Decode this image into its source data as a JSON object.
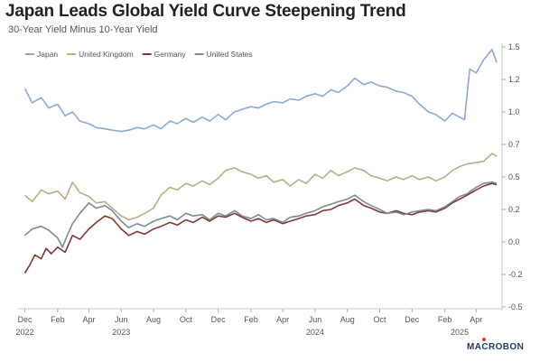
{
  "title": "Japan Leads Global Yield Curve Steepening Trend",
  "subtitle": "30-Year Yield Minus 10-Year Yield",
  "brand": "MACROBON",
  "chart_data": {
    "type": "line",
    "ylim": [
      -0.5,
      1.5
    ],
    "yticks": [
      "1.5",
      "1.2",
      "1.0",
      "0.7",
      "0.5",
      "0.2",
      "0.0",
      "-0.2",
      "-0.5"
    ],
    "ytick_values": [
      1.5,
      1.25,
      1.0,
      0.75,
      0.5,
      0.25,
      0.0,
      -0.25,
      -0.5
    ],
    "xlim": [
      "2022-11-25",
      "2025-05-20"
    ],
    "month_ticks": [
      {
        "label": "Dec",
        "date": "2022-12-01"
      },
      {
        "label": "Feb",
        "date": "2023-02-01"
      },
      {
        "label": "Apr",
        "date": "2023-04-01"
      },
      {
        "label": "Jun",
        "date": "2023-06-01"
      },
      {
        "label": "Aug",
        "date": "2023-08-01"
      },
      {
        "label": "Oct",
        "date": "2023-10-01"
      },
      {
        "label": "Dec",
        "date": "2023-12-01"
      },
      {
        "label": "Feb",
        "date": "2024-02-01"
      },
      {
        "label": "Apr",
        "date": "2024-04-01"
      },
      {
        "label": "Jun",
        "date": "2024-06-01"
      },
      {
        "label": "Aug",
        "date": "2024-08-01"
      },
      {
        "label": "Oct",
        "date": "2024-10-01"
      },
      {
        "label": "Dec",
        "date": "2024-12-01"
      },
      {
        "label": "Feb",
        "date": "2025-02-01"
      },
      {
        "label": "Apr",
        "date": "2025-04-01"
      }
    ],
    "year_ticks": [
      {
        "label": "2022",
        "date": "2022-12-01"
      },
      {
        "label": "2023",
        "date": "2023-06-01"
      },
      {
        "label": "2024",
        "date": "2024-06-01"
      },
      {
        "label": "2025",
        "date": "2025-03-01"
      }
    ],
    "legend_position": "top-left",
    "grid": false,
    "series": [
      {
        "name": "Japan",
        "color": "#8ea9cf",
        "points": [
          [
            "2022-12-01",
            1.18
          ],
          [
            "2022-12-15",
            1.07
          ],
          [
            "2023-01-01",
            1.11
          ],
          [
            "2023-01-15",
            1.03
          ],
          [
            "2023-02-01",
            1.06
          ],
          [
            "2023-02-15",
            0.97
          ],
          [
            "2023-03-01",
            1.0
          ],
          [
            "2023-03-15",
            0.93
          ],
          [
            "2023-04-01",
            0.91
          ],
          [
            "2023-04-15",
            0.88
          ],
          [
            "2023-05-01",
            0.87
          ],
          [
            "2023-05-15",
            0.86
          ],
          [
            "2023-06-01",
            0.85
          ],
          [
            "2023-06-15",
            0.86
          ],
          [
            "2023-07-01",
            0.88
          ],
          [
            "2023-07-15",
            0.87
          ],
          [
            "2023-08-01",
            0.9
          ],
          [
            "2023-08-15",
            0.87
          ],
          [
            "2023-09-01",
            0.93
          ],
          [
            "2023-09-15",
            0.91
          ],
          [
            "2023-10-01",
            0.95
          ],
          [
            "2023-10-15",
            0.92
          ],
          [
            "2023-11-01",
            0.96
          ],
          [
            "2023-11-15",
            0.93
          ],
          [
            "2023-12-01",
            0.98
          ],
          [
            "2023-12-15",
            0.94
          ],
          [
            "2024-01-01",
            1.0
          ],
          [
            "2024-01-15",
            1.02
          ],
          [
            "2024-02-01",
            1.04
          ],
          [
            "2024-02-15",
            1.03
          ],
          [
            "2024-03-01",
            1.06
          ],
          [
            "2024-03-15",
            1.08
          ],
          [
            "2024-04-01",
            1.07
          ],
          [
            "2024-04-15",
            1.1
          ],
          [
            "2024-05-01",
            1.09
          ],
          [
            "2024-05-15",
            1.12
          ],
          [
            "2024-06-01",
            1.14
          ],
          [
            "2024-06-15",
            1.12
          ],
          [
            "2024-07-01",
            1.17
          ],
          [
            "2024-07-15",
            1.15
          ],
          [
            "2024-08-01",
            1.2
          ],
          [
            "2024-08-15",
            1.26
          ],
          [
            "2024-09-01",
            1.21
          ],
          [
            "2024-09-15",
            1.23
          ],
          [
            "2024-10-01",
            1.2
          ],
          [
            "2024-10-15",
            1.19
          ],
          [
            "2024-11-01",
            1.16
          ],
          [
            "2024-11-15",
            1.15
          ],
          [
            "2024-12-01",
            1.12
          ],
          [
            "2024-12-15",
            1.06
          ],
          [
            "2025-01-01",
            1.0
          ],
          [
            "2025-01-15",
            0.98
          ],
          [
            "2025-02-01",
            0.93
          ],
          [
            "2025-02-15",
            0.99
          ],
          [
            "2025-03-01",
            0.96
          ],
          [
            "2025-03-10",
            0.94
          ],
          [
            "2025-03-20",
            1.33
          ],
          [
            "2025-04-01",
            1.3
          ],
          [
            "2025-04-15",
            1.4
          ],
          [
            "2025-05-01",
            1.48
          ],
          [
            "2025-05-10",
            1.38
          ]
        ]
      },
      {
        "name": "United Kingdom",
        "color": "#b8ad88",
        "points": [
          [
            "2022-12-01",
            0.36
          ],
          [
            "2022-12-15",
            0.31
          ],
          [
            "2023-01-01",
            0.4
          ],
          [
            "2023-01-15",
            0.37
          ],
          [
            "2023-02-01",
            0.39
          ],
          [
            "2023-02-15",
            0.33
          ],
          [
            "2023-03-01",
            0.46
          ],
          [
            "2023-03-15",
            0.38
          ],
          [
            "2023-04-01",
            0.35
          ],
          [
            "2023-04-15",
            0.3
          ],
          [
            "2023-05-01",
            0.31
          ],
          [
            "2023-05-15",
            0.26
          ],
          [
            "2023-06-01",
            0.2
          ],
          [
            "2023-06-15",
            0.17
          ],
          [
            "2023-07-01",
            0.19
          ],
          [
            "2023-07-15",
            0.22
          ],
          [
            "2023-08-01",
            0.26
          ],
          [
            "2023-08-15",
            0.36
          ],
          [
            "2023-09-01",
            0.42
          ],
          [
            "2023-09-15",
            0.4
          ],
          [
            "2023-10-01",
            0.45
          ],
          [
            "2023-10-15",
            0.43
          ],
          [
            "2023-11-01",
            0.47
          ],
          [
            "2023-11-15",
            0.44
          ],
          [
            "2023-12-01",
            0.49
          ],
          [
            "2023-12-15",
            0.55
          ],
          [
            "2024-01-01",
            0.57
          ],
          [
            "2024-01-15",
            0.54
          ],
          [
            "2024-02-01",
            0.52
          ],
          [
            "2024-02-15",
            0.49
          ],
          [
            "2024-03-01",
            0.51
          ],
          [
            "2024-03-15",
            0.46
          ],
          [
            "2024-04-01",
            0.48
          ],
          [
            "2024-04-15",
            0.43
          ],
          [
            "2024-05-01",
            0.48
          ],
          [
            "2024-05-15",
            0.45
          ],
          [
            "2024-06-01",
            0.52
          ],
          [
            "2024-06-15",
            0.49
          ],
          [
            "2024-07-01",
            0.55
          ],
          [
            "2024-07-15",
            0.51
          ],
          [
            "2024-08-01",
            0.54
          ],
          [
            "2024-08-15",
            0.57
          ],
          [
            "2024-09-01",
            0.55
          ],
          [
            "2024-09-15",
            0.51
          ],
          [
            "2024-10-01",
            0.49
          ],
          [
            "2024-10-15",
            0.47
          ],
          [
            "2024-11-01",
            0.5
          ],
          [
            "2024-11-15",
            0.48
          ],
          [
            "2024-12-01",
            0.51
          ],
          [
            "2024-12-15",
            0.48
          ],
          [
            "2025-01-01",
            0.5
          ],
          [
            "2025-01-15",
            0.47
          ],
          [
            "2025-02-01",
            0.5
          ],
          [
            "2025-02-15",
            0.55
          ],
          [
            "2025-03-01",
            0.58
          ],
          [
            "2025-03-15",
            0.6
          ],
          [
            "2025-04-01",
            0.61
          ],
          [
            "2025-04-15",
            0.62
          ],
          [
            "2025-05-01",
            0.68
          ],
          [
            "2025-05-10",
            0.66
          ]
        ]
      },
      {
        "name": "Germany",
        "color": "#7a3b34",
        "points": [
          [
            "2022-12-01",
            -0.24
          ],
          [
            "2022-12-10",
            -0.18
          ],
          [
            "2022-12-20",
            -0.1
          ],
          [
            "2023-01-01",
            -0.13
          ],
          [
            "2023-01-10",
            -0.05
          ],
          [
            "2023-01-20",
            -0.09
          ],
          [
            "2023-02-01",
            -0.04
          ],
          [
            "2023-02-15",
            -0.08
          ],
          [
            "2023-03-01",
            0.05
          ],
          [
            "2023-03-15",
            0.02
          ],
          [
            "2023-04-01",
            0.1
          ],
          [
            "2023-04-15",
            0.15
          ],
          [
            "2023-05-01",
            0.2
          ],
          [
            "2023-05-15",
            0.18
          ],
          [
            "2023-06-01",
            0.1
          ],
          [
            "2023-06-15",
            0.05
          ],
          [
            "2023-07-01",
            0.08
          ],
          [
            "2023-07-15",
            0.06
          ],
          [
            "2023-08-01",
            0.1
          ],
          [
            "2023-08-15",
            0.12
          ],
          [
            "2023-09-01",
            0.15
          ],
          [
            "2023-09-15",
            0.13
          ],
          [
            "2023-10-01",
            0.17
          ],
          [
            "2023-10-15",
            0.15
          ],
          [
            "2023-11-01",
            0.19
          ],
          [
            "2023-11-15",
            0.16
          ],
          [
            "2023-12-01",
            0.2
          ],
          [
            "2023-12-15",
            0.19
          ],
          [
            "2024-01-01",
            0.22
          ],
          [
            "2024-01-15",
            0.19
          ],
          [
            "2024-02-01",
            0.16
          ],
          [
            "2024-02-15",
            0.18
          ],
          [
            "2024-03-01",
            0.15
          ],
          [
            "2024-03-15",
            0.17
          ],
          [
            "2024-04-01",
            0.14
          ],
          [
            "2024-04-15",
            0.16
          ],
          [
            "2024-05-01",
            0.18
          ],
          [
            "2024-05-15",
            0.2
          ],
          [
            "2024-06-01",
            0.21
          ],
          [
            "2024-06-15",
            0.24
          ],
          [
            "2024-07-01",
            0.25
          ],
          [
            "2024-07-15",
            0.28
          ],
          [
            "2024-08-01",
            0.3
          ],
          [
            "2024-08-15",
            0.33
          ],
          [
            "2024-09-01",
            0.28
          ],
          [
            "2024-09-15",
            0.26
          ],
          [
            "2024-10-01",
            0.23
          ],
          [
            "2024-10-15",
            0.22
          ],
          [
            "2024-11-01",
            0.24
          ],
          [
            "2024-11-15",
            0.22
          ],
          [
            "2024-12-01",
            0.21
          ],
          [
            "2024-12-15",
            0.23
          ],
          [
            "2025-01-01",
            0.24
          ],
          [
            "2025-01-15",
            0.23
          ],
          [
            "2025-02-01",
            0.26
          ],
          [
            "2025-02-15",
            0.3
          ],
          [
            "2025-03-01",
            0.33
          ],
          [
            "2025-03-15",
            0.36
          ],
          [
            "2025-04-01",
            0.4
          ],
          [
            "2025-04-15",
            0.43
          ],
          [
            "2025-05-01",
            0.45
          ],
          [
            "2025-05-10",
            0.44
          ]
        ]
      },
      {
        "name": "United States",
        "color": "#7e8a96",
        "points": [
          [
            "2022-12-01",
            0.05
          ],
          [
            "2022-12-15",
            0.1
          ],
          [
            "2023-01-01",
            0.12
          ],
          [
            "2023-01-15",
            0.09
          ],
          [
            "2023-02-01",
            0.03
          ],
          [
            "2023-02-10",
            -0.04
          ],
          [
            "2023-02-20",
            0.06
          ],
          [
            "2023-03-01",
            0.14
          ],
          [
            "2023-03-15",
            0.22
          ],
          [
            "2023-04-01",
            0.3
          ],
          [
            "2023-04-15",
            0.26
          ],
          [
            "2023-05-01",
            0.28
          ],
          [
            "2023-05-15",
            0.24
          ],
          [
            "2023-06-01",
            0.16
          ],
          [
            "2023-06-15",
            0.11
          ],
          [
            "2023-07-01",
            0.14
          ],
          [
            "2023-07-15",
            0.12
          ],
          [
            "2023-08-01",
            0.16
          ],
          [
            "2023-08-15",
            0.18
          ],
          [
            "2023-09-01",
            0.2
          ],
          [
            "2023-09-15",
            0.17
          ],
          [
            "2023-10-01",
            0.22
          ],
          [
            "2023-10-15",
            0.2
          ],
          [
            "2023-11-01",
            0.21
          ],
          [
            "2023-11-15",
            0.17
          ],
          [
            "2023-12-01",
            0.22
          ],
          [
            "2023-12-15",
            0.2
          ],
          [
            "2024-01-01",
            0.24
          ],
          [
            "2024-01-15",
            0.2
          ],
          [
            "2024-02-01",
            0.18
          ],
          [
            "2024-02-15",
            0.21
          ],
          [
            "2024-03-01",
            0.17
          ],
          [
            "2024-03-15",
            0.18
          ],
          [
            "2024-04-01",
            0.15
          ],
          [
            "2024-04-15",
            0.19
          ],
          [
            "2024-05-01",
            0.2
          ],
          [
            "2024-05-15",
            0.22
          ],
          [
            "2024-06-01",
            0.24
          ],
          [
            "2024-06-15",
            0.27
          ],
          [
            "2024-07-01",
            0.29
          ],
          [
            "2024-07-15",
            0.31
          ],
          [
            "2024-08-01",
            0.33
          ],
          [
            "2024-08-15",
            0.36
          ],
          [
            "2024-09-01",
            0.31
          ],
          [
            "2024-09-15",
            0.28
          ],
          [
            "2024-10-01",
            0.25
          ],
          [
            "2024-10-15",
            0.22
          ],
          [
            "2024-11-01",
            0.23
          ],
          [
            "2024-11-15",
            0.21
          ],
          [
            "2024-12-01",
            0.23
          ],
          [
            "2024-12-15",
            0.24
          ],
          [
            "2025-01-01",
            0.25
          ],
          [
            "2025-01-15",
            0.24
          ],
          [
            "2025-02-01",
            0.27
          ],
          [
            "2025-02-15",
            0.31
          ],
          [
            "2025-03-01",
            0.35
          ],
          [
            "2025-03-15",
            0.37
          ],
          [
            "2025-04-01",
            0.42
          ],
          [
            "2025-04-15",
            0.45
          ],
          [
            "2025-05-01",
            0.46
          ],
          [
            "2025-05-10",
            0.45
          ]
        ]
      }
    ]
  }
}
